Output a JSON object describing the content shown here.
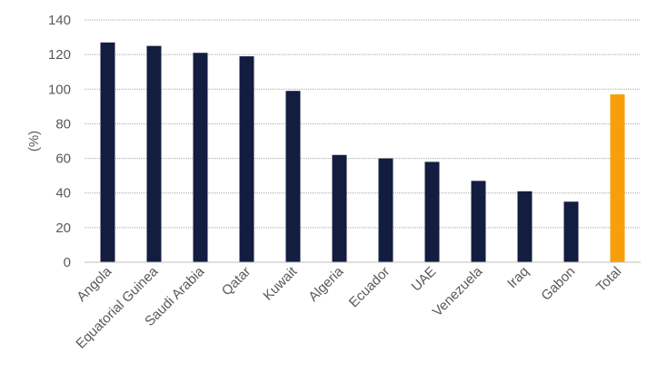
{
  "chart_data": {
    "type": "bar",
    "categories": [
      "Angola",
      "Equatorial Guinea",
      "Saudi Arabia",
      "Qatar",
      "Kuwait",
      "Algeria",
      "Ecuador",
      "UAE",
      "Venezuela",
      "Iraq",
      "Gabon",
      "Total"
    ],
    "values": [
      127,
      125,
      121,
      119,
      99,
      62,
      60,
      58,
      47,
      41,
      35,
      97
    ],
    "bar_colors": [
      "#131d40",
      "#131d40",
      "#131d40",
      "#131d40",
      "#131d40",
      "#131d40",
      "#131d40",
      "#131d40",
      "#131d40",
      "#131d40",
      "#131d40",
      "#f99e0b"
    ],
    "ylabel": "(%)",
    "ylim": [
      0,
      140
    ],
    "yticks": [
      0,
      20,
      40,
      60,
      80,
      100,
      120,
      140
    ],
    "grid": true,
    "legend": "none"
  }
}
